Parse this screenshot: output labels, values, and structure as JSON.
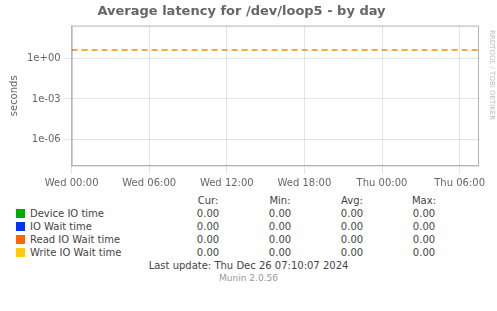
{
  "chart_data": {
    "type": "line",
    "title": "Average latency for /dev/loop5 - by day",
    "y_label": "seconds",
    "log": "y",
    "grid": true,
    "xlim": [
      0,
      31.5
    ],
    "xticks": [
      {
        "value": 0,
        "label": "Wed 00:00"
      },
      {
        "value": 6,
        "label": "Wed 06:00"
      },
      {
        "value": 12,
        "label": "Wed 12:00"
      },
      {
        "value": 18,
        "label": "Wed 18:00"
      },
      {
        "value": 24,
        "label": "Thu 00:00"
      },
      {
        "value": 30,
        "label": "Thu 06:00"
      }
    ],
    "ylim": [
      1e-08,
      300
    ],
    "yticks": [
      {
        "value": 1e-06,
        "label": "1e-06"
      },
      {
        "value": 0.001,
        "label": "1e-03"
      },
      {
        "value": 1,
        "label": "1e+00"
      }
    ],
    "lines": [
      {
        "y": 4.5,
        "color": "#ff8800",
        "line_style": "dashed"
      }
    ],
    "table": {
      "columns": [
        "Cur:",
        "Min:",
        "Avg:",
        "Max:"
      ],
      "rows": [
        {
          "name": "Device IO time",
          "color": "#00aa00",
          "values": [
            0,
            0,
            0,
            0
          ],
          "value_labels": [
            "0.00",
            "0.00",
            "0.00",
            "0.00"
          ]
        },
        {
          "name": "IO Wait time",
          "color": "#0033ff",
          "values": [
            0,
            0,
            0,
            0
          ],
          "value_labels": [
            "0.00",
            "0.00",
            "0.00",
            "0.00"
          ]
        },
        {
          "name": "Read IO Wait time",
          "color": "#ff6600",
          "values": [
            0,
            0,
            0,
            0
          ],
          "value_labels": [
            "0.00",
            "0.00",
            "0.00",
            "0.00"
          ]
        },
        {
          "name": "Write IO Wait time",
          "color": "#ffcc00",
          "values": [
            0,
            0,
            0,
            0
          ],
          "value_labels": [
            "0.00",
            "0.00",
            "0.00",
            "0.00"
          ]
        }
      ]
    },
    "footer": [
      "Last update: Thu Dec 26 07:10:07 2024",
      "Munin 2.0.56"
    ],
    "watermark": "RRDTOOL / TOBI OETIKER"
  }
}
